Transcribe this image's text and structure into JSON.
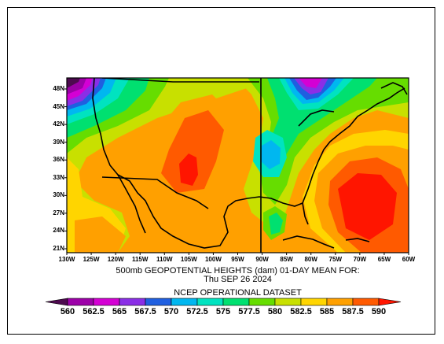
{
  "map": {
    "title_line1": "500mb GEOPOTENTIAL HEIGHTS (dam)   01-DAY MEAN FOR:",
    "title_line2": "Thu SEP 26 2024",
    "dataset": "NCEP OPERATIONAL DATASET",
    "lat_labels": [
      "48N",
      "45N",
      "42N",
      "39N",
      "36N",
      "33N",
      "30N",
      "27N",
      "24N",
      "21N"
    ],
    "lon_labels": [
      "130W",
      "125W",
      "120W",
      "115W",
      "110W",
      "105W",
      "100W",
      "95W",
      "90W",
      "85W",
      "80W",
      "75W",
      "70W",
      "65W",
      "60W"
    ],
    "colorbar": {
      "labels": [
        "560",
        "562.5",
        "565",
        "567.5",
        "570",
        "572.5",
        "575",
        "577.5",
        "580",
        "582.5",
        "585",
        "587.5",
        "590"
      ],
      "colors": [
        "#4d0a4f",
        "#9c00a8",
        "#d400d4",
        "#8a2ee6",
        "#1f5fe0",
        "#00b7f0",
        "#00e3c0",
        "#00e070",
        "#66dd00",
        "#c8e000",
        "#ffd500",
        "#ffa000",
        "#ff5a00",
        "#ff1500"
      ]
    },
    "contour_colors": {
      "c560": "#4d0a4f",
      "c562": "#9c00a8",
      "c565": "#d400d4",
      "c567": "#8a2ee6",
      "c570": "#1f5fe0",
      "c572": "#00b7f0",
      "c575": "#00e3c0",
      "c577": "#00e070",
      "c580": "#66dd00",
      "c582": "#c8e000",
      "c585": "#ffd500",
      "c587": "#ffa000",
      "c590": "#ff5a00"
    }
  }
}
